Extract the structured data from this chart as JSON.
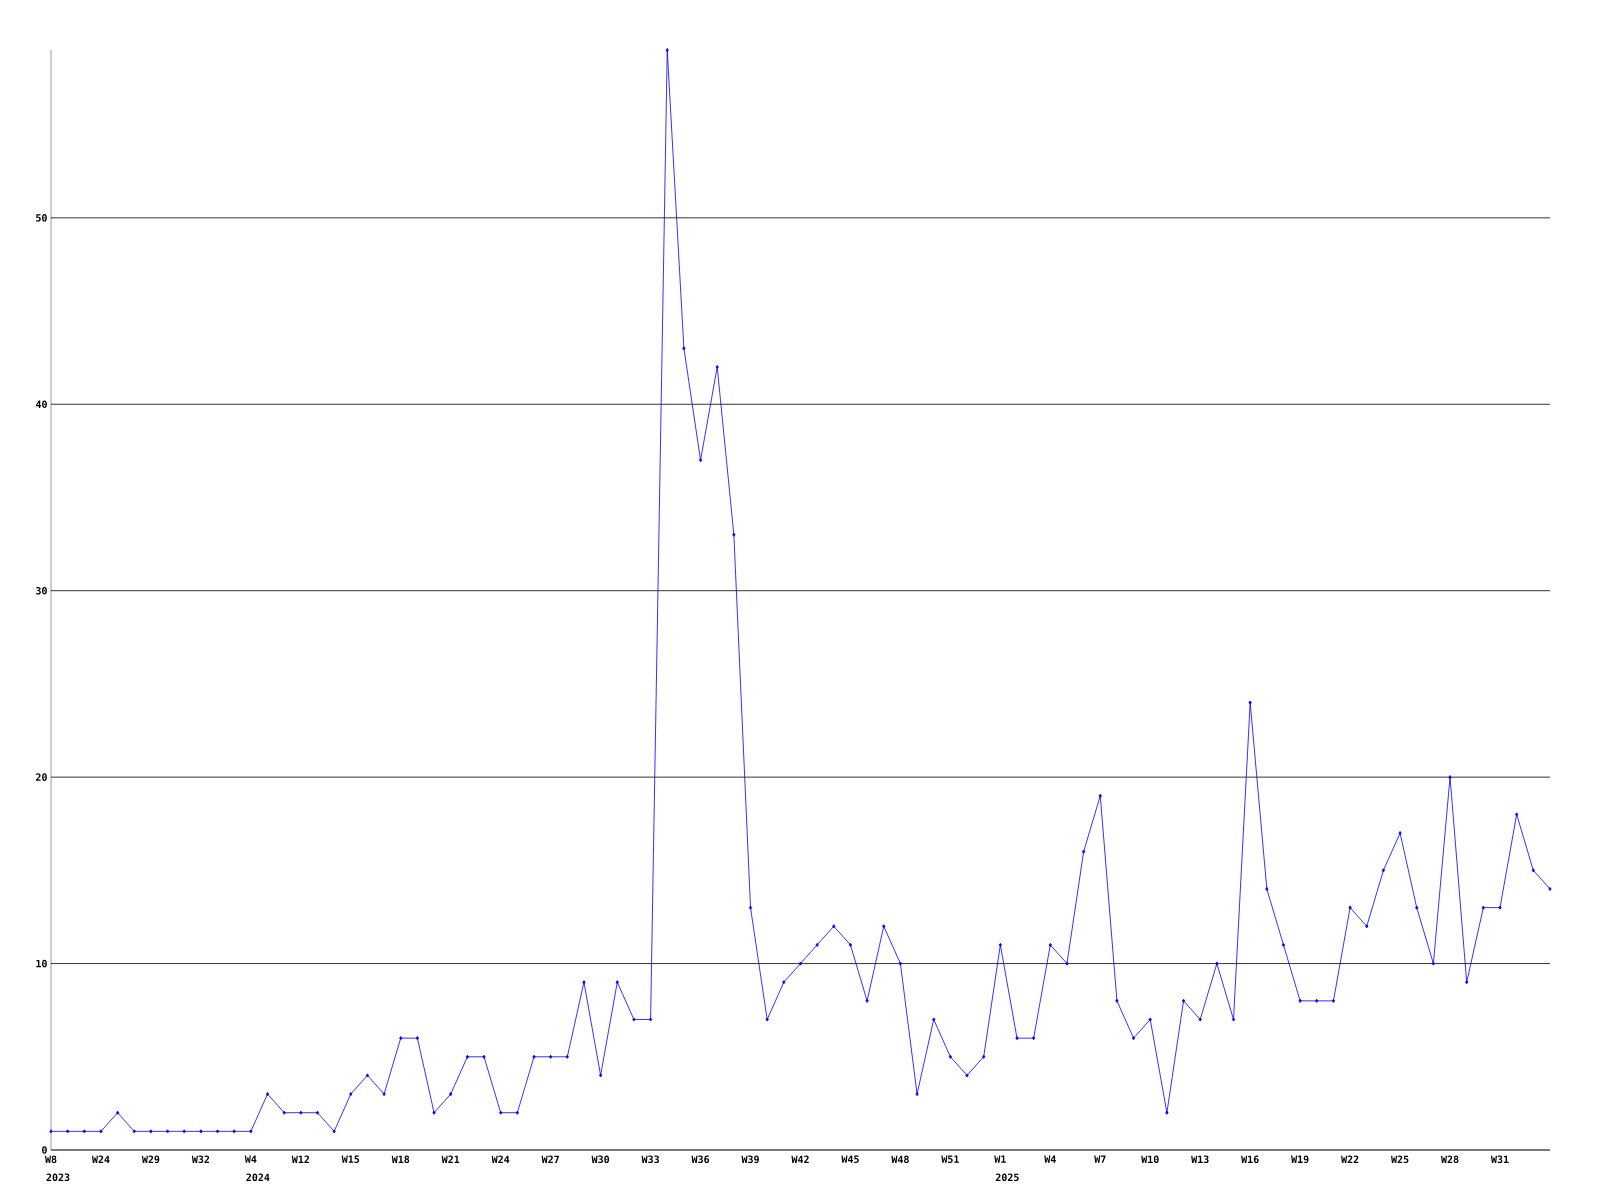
{
  "chart_data": {
    "type": "line",
    "color": "#0000ff",
    "marker": "diamond",
    "grid": "y",
    "categories": [
      "W8",
      null,
      null,
      "W24",
      null,
      null,
      "W29",
      null,
      null,
      "W32",
      null,
      null,
      "W4",
      null,
      null,
      "W12",
      null,
      null,
      "W15",
      null,
      null,
      "W18",
      null,
      null,
      "W21",
      null,
      null,
      "W24",
      null,
      null,
      "W27",
      null,
      null,
      "W30",
      null,
      null,
      "W33",
      null,
      null,
      "W36",
      null,
      null,
      "W39",
      null,
      null,
      "W42",
      null,
      null,
      "W45",
      null,
      null,
      "W48",
      null,
      null,
      "W51",
      null,
      null,
      "W1",
      null,
      null,
      "W4",
      null,
      null,
      "W7",
      null,
      null,
      "W10",
      null,
      null,
      "W13",
      null,
      null,
      "W16",
      null,
      null,
      "W19",
      null,
      null,
      "W22",
      null,
      null,
      "W25",
      null,
      null,
      "W28",
      null,
      null,
      "W31",
      null,
      null,
      null
    ],
    "values": [
      1,
      1,
      1,
      1,
      2,
      1,
      1,
      1,
      1,
      1,
      1,
      1,
      1,
      3,
      2,
      2,
      2,
      1,
      3,
      4,
      3,
      6,
      6,
      2,
      3,
      5,
      5,
      2,
      2,
      5,
      5,
      5,
      9,
      4,
      9,
      7,
      7,
      59,
      43,
      37,
      42,
      33,
      13,
      7,
      9,
      10,
      11,
      12,
      11,
      8,
      12,
      10,
      3,
      7,
      5,
      4,
      5,
      11,
      6,
      6,
      11,
      10,
      16,
      19,
      8,
      6,
      7,
      2,
      8,
      7,
      10,
      7,
      24,
      14,
      11,
      8,
      8,
      8,
      13,
      12,
      15,
      17,
      13,
      10,
      20,
      9,
      13,
      13,
      18,
      15,
      14
    ],
    "ylim": [
      0,
      59
    ],
    "yticks": [
      0,
      10,
      20,
      30,
      40,
      50
    ],
    "annotations": [
      "2023",
      "2024",
      "2025"
    ]
  }
}
